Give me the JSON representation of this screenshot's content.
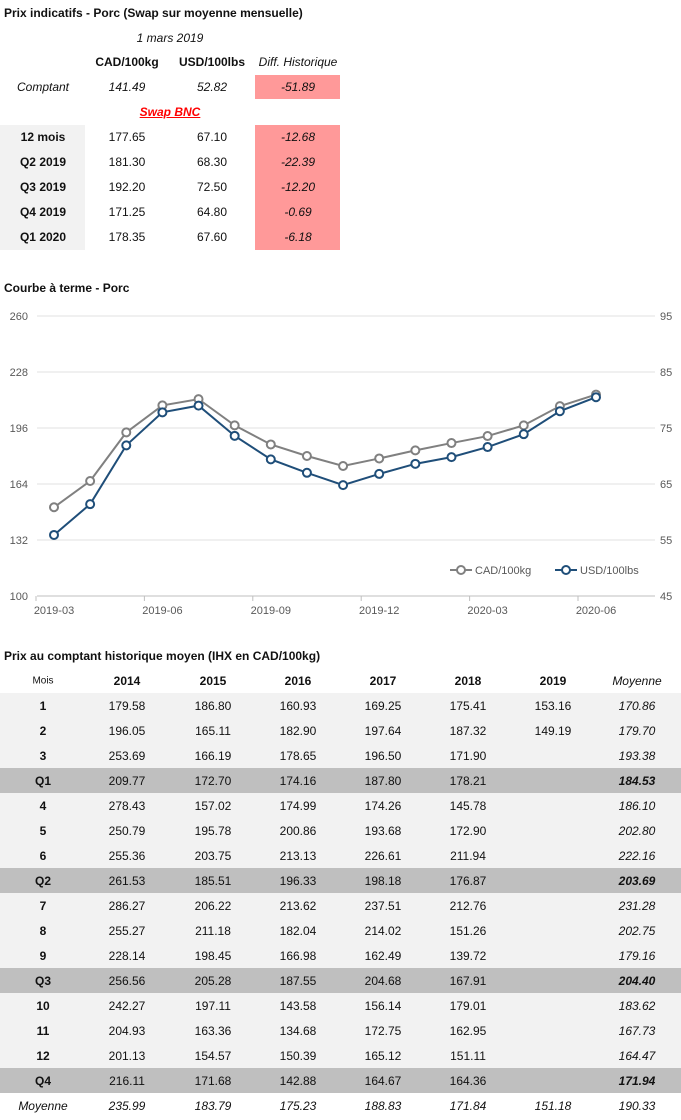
{
  "summary": {
    "title": "Prix indicatifs - Porc (Swap sur moyenne mensuelle)",
    "date": "1 mars 2019",
    "headers": [
      "CAD/100kg",
      "USD/100lbs",
      "Diff. Historique"
    ],
    "spot": {
      "label": "Comptant",
      "cad": "141.49",
      "usd": "52.82",
      "diff": "-51.89"
    },
    "swap_label": "Swap BNC",
    "rows": [
      {
        "label": "12 mois",
        "cad": "177.65",
        "usd": "67.10",
        "diff": "-12.68"
      },
      {
        "label": "Q2 2019",
        "cad": "181.30",
        "usd": "68.30",
        "diff": "-22.39"
      },
      {
        "label": "Q3 2019",
        "cad": "192.20",
        "usd": "72.50",
        "diff": "-12.20"
      },
      {
        "label": "Q4 2019",
        "cad": "171.25",
        "usd": "64.80",
        "diff": "-0.69"
      },
      {
        "label": "Q1 2020",
        "cad": "178.35",
        "usd": "67.60",
        "diff": "-6.18"
      }
    ],
    "colors": {
      "negative_bg": "#ff9999",
      "swap_link": "#ff0000"
    }
  },
  "chart_data": {
    "type": "line",
    "title": "Courbe à terme - Porc",
    "x": [
      "2019-03",
      "2019-04",
      "2019-05",
      "2019-06",
      "2019-07",
      "2019-08",
      "2019-09",
      "2019-10",
      "2019-11",
      "2019-12",
      "2020-01",
      "2020-02",
      "2020-03",
      "2020-04",
      "2020-05",
      "2020-06"
    ],
    "x_tick_labels": [
      "2019-03",
      "2019-06",
      "2019-09",
      "2019-12",
      "2020-03",
      "2020-06"
    ],
    "series": [
      {
        "name": "CAD/100kg",
        "axis": "left",
        "color": "#808080",
        "values": [
          150.7,
          165.7,
          193.5,
          208.9,
          212.5,
          197.5,
          186.6,
          180.0,
          174.3,
          178.6,
          183.2,
          187.4,
          191.4,
          197.5,
          208.5,
          215.1
        ]
      },
      {
        "name": "USD/100lbs",
        "axis": "right",
        "color": "#1f4e79",
        "values": [
          55.9,
          61.4,
          71.9,
          77.8,
          79.0,
          73.6,
          69.4,
          67.0,
          64.8,
          66.8,
          68.6,
          69.8,
          71.6,
          73.9,
          78.0,
          80.5
        ]
      }
    ],
    "y_left": {
      "ylim": [
        100,
        260
      ],
      "ticks": [
        "100",
        "132",
        "164",
        "196",
        "228",
        "260"
      ]
    },
    "y_right": {
      "ylim": [
        45,
        95
      ],
      "ticks": [
        "45",
        "55",
        "65",
        "75",
        "85",
        "95"
      ]
    },
    "grid": true,
    "legend": "bottom-right"
  },
  "history": {
    "title": "Prix au comptant historique moyen (IHX en CAD/100kg)",
    "headers": [
      "Mois",
      "2014",
      "2015",
      "2016",
      "2017",
      "2018",
      "2019",
      "Moyenne"
    ],
    "rows": [
      {
        "type": "m",
        "cells": [
          "1",
          "179.58",
          "186.80",
          "160.93",
          "169.25",
          "175.41",
          "153.16",
          "170.86"
        ]
      },
      {
        "type": "m",
        "cells": [
          "2",
          "196.05",
          "165.11",
          "182.90",
          "197.64",
          "187.32",
          "149.19",
          "179.70"
        ]
      },
      {
        "type": "m",
        "cells": [
          "3",
          "253.69",
          "166.19",
          "178.65",
          "196.50",
          "171.90",
          "",
          "193.38"
        ]
      },
      {
        "type": "q",
        "cells": [
          "Q1",
          "209.77",
          "172.70",
          "174.16",
          "187.80",
          "178.21",
          "",
          "184.53"
        ]
      },
      {
        "type": "m",
        "cells": [
          "4",
          "278.43",
          "157.02",
          "174.99",
          "174.26",
          "145.78",
          "",
          "186.10"
        ]
      },
      {
        "type": "m",
        "cells": [
          "5",
          "250.79",
          "195.78",
          "200.86",
          "193.68",
          "172.90",
          "",
          "202.80"
        ]
      },
      {
        "type": "m",
        "cells": [
          "6",
          "255.36",
          "203.75",
          "213.13",
          "226.61",
          "211.94",
          "",
          "222.16"
        ]
      },
      {
        "type": "q",
        "cells": [
          "Q2",
          "261.53",
          "185.51",
          "196.33",
          "198.18",
          "176.87",
          "",
          "203.69"
        ]
      },
      {
        "type": "m",
        "cells": [
          "7",
          "286.27",
          "206.22",
          "213.62",
          "237.51",
          "212.76",
          "",
          "231.28"
        ]
      },
      {
        "type": "m",
        "cells": [
          "8",
          "255.27",
          "211.18",
          "182.04",
          "214.02",
          "151.26",
          "",
          "202.75"
        ]
      },
      {
        "type": "m",
        "cells": [
          "9",
          "228.14",
          "198.45",
          "166.98",
          "162.49",
          "139.72",
          "",
          "179.16"
        ]
      },
      {
        "type": "q",
        "cells": [
          "Q3",
          "256.56",
          "205.28",
          "187.55",
          "204.68",
          "167.91",
          "",
          "204.40"
        ]
      },
      {
        "type": "m",
        "cells": [
          "10",
          "242.27",
          "197.11",
          "143.58",
          "156.14",
          "179.01",
          "",
          "183.62"
        ]
      },
      {
        "type": "m",
        "cells": [
          "11",
          "204.93",
          "163.36",
          "134.68",
          "172.75",
          "162.95",
          "",
          "167.73"
        ]
      },
      {
        "type": "m",
        "cells": [
          "12",
          "201.13",
          "154.57",
          "150.39",
          "165.12",
          "151.11",
          "",
          "164.47"
        ]
      },
      {
        "type": "q",
        "cells": [
          "Q4",
          "216.11",
          "171.68",
          "142.88",
          "164.67",
          "164.36",
          "",
          "171.94"
        ]
      },
      {
        "type": "avg",
        "cells": [
          "Moyenne",
          "235.99",
          "183.79",
          "175.23",
          "188.83",
          "171.84",
          "151.18",
          "190.33"
        ]
      }
    ]
  }
}
